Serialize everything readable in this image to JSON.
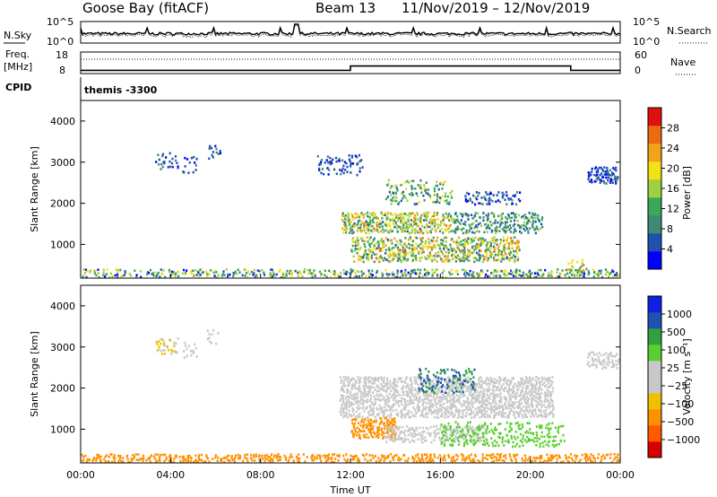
{
  "header": {
    "station": "Goose Bay (fitACF)",
    "beam": "Beam 13",
    "date_range": "11/Nov/2019 – 12/Nov/2019"
  },
  "noise_panel": {
    "left_label": "N.Sky",
    "right_label": "N.Search",
    "left_ticks": [
      "10^5",
      "10^0"
    ],
    "right_ticks": [
      "10^5",
      "10^0"
    ]
  },
  "freq_panel": {
    "left_label_1": "Freq.",
    "left_label_2": "[MHz]",
    "right_label": "Nave",
    "left_ticks": [
      "18",
      "8"
    ],
    "right_ticks": [
      "60",
      "0"
    ],
    "freq_steps": [
      {
        "t_hours": 0.0,
        "level": 0.15
      },
      {
        "t_hours": 12.0,
        "level": 0.35
      },
      {
        "t_hours": 21.8,
        "level": 0.15
      }
    ]
  },
  "cpid_panel": {
    "label": "CPID",
    "mode": "themis -3300"
  },
  "colors": {
    "power": [
      "#0000ff",
      "#2050b0",
      "#3f8a75",
      "#39a85a",
      "#9ed040",
      "#f3e017",
      "#f3a31a",
      "#ee6a12",
      "#e01010"
    ],
    "velocity": [
      "#d80000",
      "#ff5a00",
      "#ff9000",
      "#f0c000",
      "#c8c8c8",
      "#c8c8c8",
      "#5ad030",
      "#30a040",
      "#2050b0",
      "#1020e0"
    ]
  },
  "chart_data": [
    {
      "type": "heatmap",
      "name": "power",
      "ylabel": "Slant Range [km]",
      "xlabel": "",
      "ylim": [
        180,
        4500
      ],
      "xlim_hours": [
        0,
        24
      ],
      "y_ticks": [
        "1000",
        "2000",
        "3000",
        "4000"
      ],
      "y_tick_values": [
        1000,
        2000,
        3000,
        4000
      ],
      "colorbar_label": "Power [dB]",
      "colorbar_ticks": [
        "4",
        "8",
        "12",
        "16",
        "20",
        "24",
        "28"
      ],
      "colorbar_range": [
        0,
        30
      ],
      "regions": [
        {
          "t": [
            0.0,
            24.0
          ],
          "r": [
            180,
            420
          ],
          "v": [
            2,
            20
          ],
          "d": 0.55
        },
        {
          "t": [
            3.3,
            4.3
          ],
          "r": [
            2850,
            3250
          ],
          "v": [
            2,
            8
          ],
          "d": 0.45
        },
        {
          "t": [
            4.5,
            5.2
          ],
          "r": [
            2750,
            3150
          ],
          "v": [
            2,
            8
          ],
          "d": 0.4
        },
        {
          "t": [
            5.6,
            6.2
          ],
          "r": [
            3100,
            3450
          ],
          "v": [
            2,
            8
          ],
          "d": 0.3
        },
        {
          "t": [
            10.5,
            12.5
          ],
          "r": [
            2700,
            3200
          ],
          "v": [
            2,
            8
          ],
          "d": 0.35
        },
        {
          "t": [
            11.5,
            16.5
          ],
          "r": [
            1300,
            1800
          ],
          "v": [
            6,
            24
          ],
          "d": 0.75
        },
        {
          "t": [
            16.5,
            20.5
          ],
          "r": [
            1300,
            1800
          ],
          "v": [
            4,
            16
          ],
          "d": 0.6
        },
        {
          "t": [
            12.0,
            19.5
          ],
          "r": [
            600,
            1200
          ],
          "v": [
            6,
            24
          ],
          "d": 0.65
        },
        {
          "t": [
            13.5,
            16.5
          ],
          "r": [
            2000,
            2600
          ],
          "v": [
            4,
            18
          ],
          "d": 0.35
        },
        {
          "t": [
            17.0,
            19.5
          ],
          "r": [
            2000,
            2300
          ],
          "v": [
            2,
            8
          ],
          "d": 0.4
        },
        {
          "t": [
            22.5,
            24.0
          ],
          "r": [
            2500,
            2900
          ],
          "v": [
            2,
            8
          ],
          "d": 0.7
        },
        {
          "t": [
            21.5,
            22.5
          ],
          "r": [
            350,
            650
          ],
          "v": [
            8,
            26
          ],
          "d": 0.35
        }
      ]
    },
    {
      "type": "heatmap",
      "name": "velocity",
      "ylabel": "Slant Range [km]",
      "xlabel": "Time UT",
      "ylim": [
        180,
        4500
      ],
      "xlim_hours": [
        0,
        24
      ],
      "x_ticks": [
        "00:00",
        "04:00",
        "08:00",
        "12:00",
        "16:00",
        "20:00",
        "00:00"
      ],
      "x_tick_values": [
        0,
        4,
        8,
        12,
        16,
        20,
        24
      ],
      "y_ticks": [
        "1000",
        "2000",
        "3000",
        "4000"
      ],
      "y_tick_values": [
        1000,
        2000,
        3000,
        4000
      ],
      "colorbar_label": "Velocity [m s⁻¹]",
      "colorbar_ticks": [
        "1000",
        "500",
        "100",
        "25",
        "−25",
        "−100",
        "−500",
        "−1000"
      ],
      "regions": [
        {
          "t": [
            0.0,
            24.0
          ],
          "r": [
            180,
            420
          ],
          "v": [
            2,
            3
          ],
          "d": 0.6
        },
        {
          "t": [
            3.3,
            4.3
          ],
          "r": [
            2850,
            3250
          ],
          "v": [
            3,
            5
          ],
          "d": 0.35
        },
        {
          "t": [
            4.5,
            5.2
          ],
          "r": [
            2750,
            3150
          ],
          "v": [
            4,
            5
          ],
          "d": 0.35
        },
        {
          "t": [
            5.6,
            6.2
          ],
          "r": [
            3100,
            3450
          ],
          "v": [
            4,
            5
          ],
          "d": 0.3
        },
        {
          "t": [
            11.5,
            21.0
          ],
          "r": [
            1300,
            2300
          ],
          "v": [
            4,
            5
          ],
          "d": 0.75
        },
        {
          "t": [
            12.0,
            14.0
          ],
          "r": [
            800,
            1300
          ],
          "v": [
            2,
            3
          ],
          "d": 0.75
        },
        {
          "t": [
            13.5,
            18.0
          ],
          "r": [
            700,
            1100
          ],
          "v": [
            4,
            5
          ],
          "d": 0.6
        },
        {
          "t": [
            16.0,
            21.5
          ],
          "r": [
            600,
            1200
          ],
          "v": [
            6,
            7
          ],
          "d": 0.4
        },
        {
          "t": [
            15.0,
            17.5
          ],
          "r": [
            1900,
            2500
          ],
          "v": [
            7,
            9
          ],
          "d": 0.35
        },
        {
          "t": [
            22.5,
            24.0
          ],
          "r": [
            2500,
            2900
          ],
          "v": [
            4,
            5
          ],
          "d": 0.6
        }
      ]
    }
  ]
}
